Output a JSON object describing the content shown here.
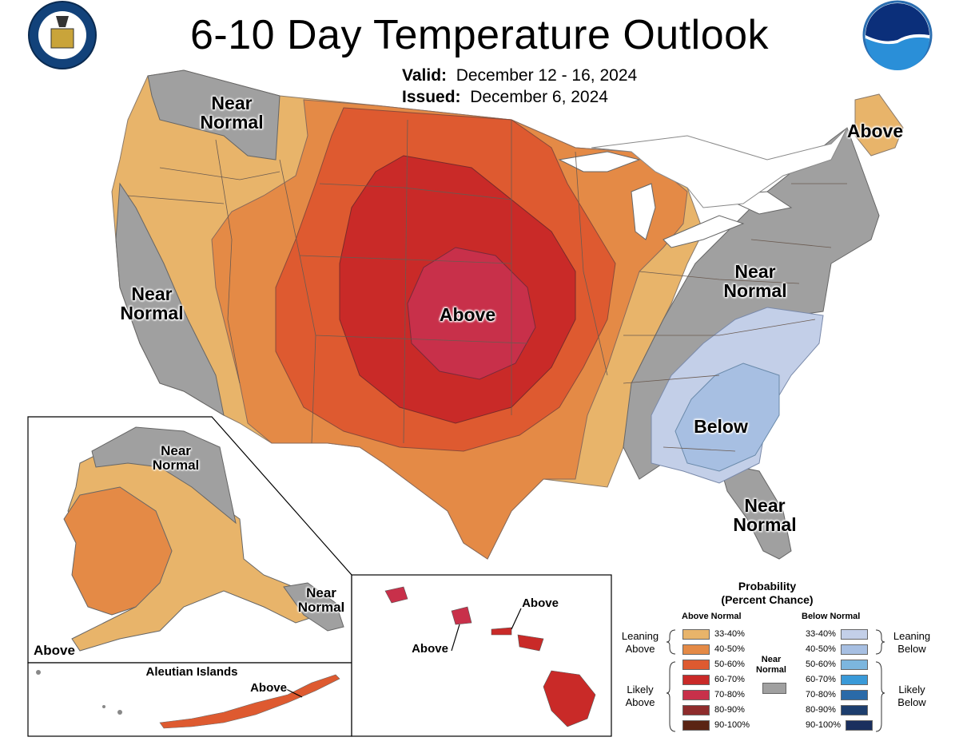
{
  "header": {
    "title": "6-10 Day Temperature Outlook",
    "valid_label": "Valid:",
    "valid_value": "December 12 - 16, 2024",
    "issued_label": "Issued:",
    "issued_value": "December 6, 2024"
  },
  "logos": {
    "left_seal_text": "DEPARTMENT OF COMMERCE · UNITED STATES OF AMERICA",
    "right_logo_text": "NOAA"
  },
  "map_labels": {
    "nw_near_normal_1": "Near",
    "nw_near_normal_2": "Normal",
    "west_near_normal_1": "Near",
    "west_near_normal_2": "Normal",
    "central_above": "Above",
    "ne_above": "Above",
    "east_near_normal_1": "Near",
    "east_near_normal_2": "Normal",
    "se_below": "Below",
    "fl_near_normal_1": "Near",
    "fl_near_normal_2": "Normal",
    "ak_near_normal_1": "Near",
    "ak_near_normal_2": "Normal",
    "ak_se_near_normal_1": "Near",
    "ak_se_near_normal_2": "Normal",
    "ak_above": "Above",
    "aleutian_title": "Aleutian Islands",
    "aleutian_above": "Above",
    "hi_above_1": "Above",
    "hi_above_2": "Above"
  },
  "legend": {
    "title_1": "Probability",
    "title_2": "(Percent Chance)",
    "above_head": "Above Normal",
    "below_head": "Below Normal",
    "near_normal_1": "Near",
    "near_normal_2": "Normal",
    "leaning_above_1": "Leaning",
    "leaning_above_2": "Above",
    "likely_above_1": "Likely",
    "likely_above_2": "Above",
    "leaning_below_1": "Leaning",
    "leaning_below_2": "Below",
    "likely_below_1": "Likely",
    "likely_below_2": "Below",
    "above_rows": [
      "33-40%",
      "40-50%",
      "50-60%",
      "60-70%",
      "70-80%",
      "80-90%",
      "90-100%"
    ],
    "below_rows": [
      "33-40%",
      "40-50%",
      "50-60%",
      "60-70%",
      "70-80%",
      "80-90%",
      "90-100%"
    ],
    "above_colors": [
      "#e8b46a",
      "#e48a46",
      "#de5a30",
      "#c92a28",
      "#c8304a",
      "#8e2c2c",
      "#5a2414"
    ],
    "below_colors": [
      "#c3cfe8",
      "#a7bfe2",
      "#7cb6de",
      "#3a9ad8",
      "#2a6aa8",
      "#1d3e6e",
      "#1a2f5e"
    ],
    "near_normal_color": "#a0a0a0"
  }
}
